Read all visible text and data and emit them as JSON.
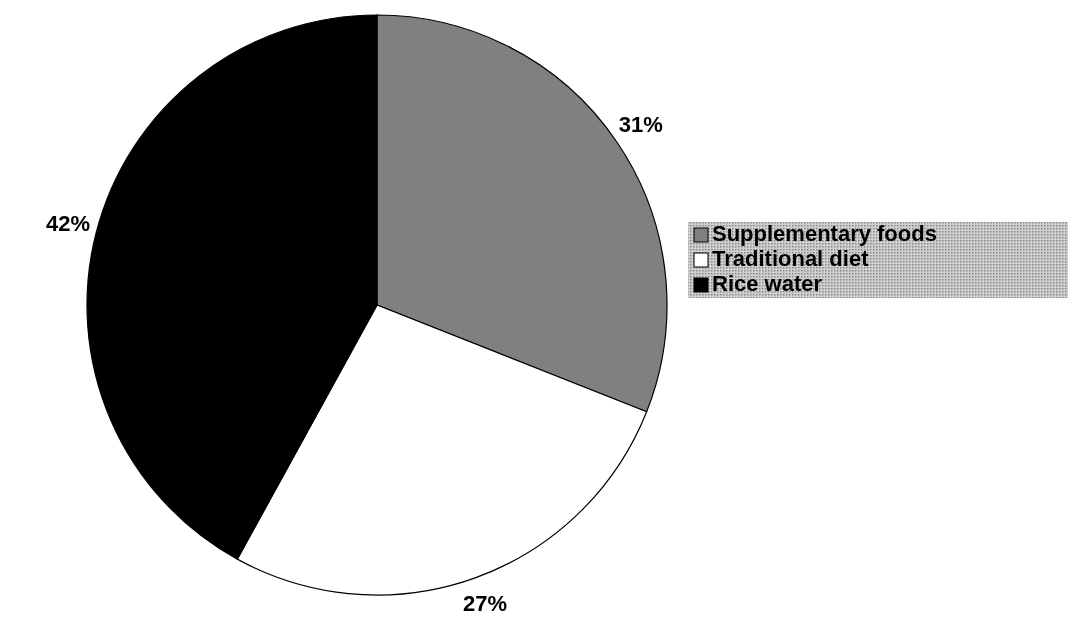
{
  "chart_data": {
    "type": "pie",
    "categories": [
      "Supplementary foods",
      "Traditional diet",
      "Rice water"
    ],
    "values": [
      31,
      27,
      42
    ],
    "colors": [
      "#808080",
      "#ffffff",
      "#000000"
    ],
    "value_labels": [
      "31%",
      "27%",
      "42%"
    ],
    "legend": "right"
  }
}
